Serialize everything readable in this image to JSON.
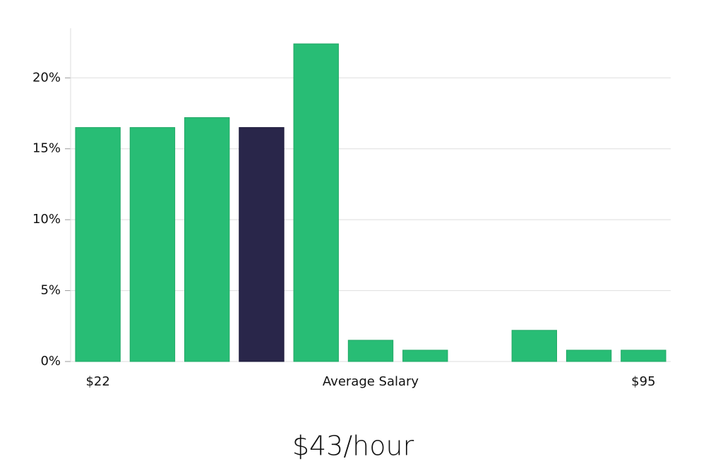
{
  "chart_data": {
    "type": "bar",
    "categories": [
      "$22",
      null,
      null,
      null,
      null,
      "Average Salary",
      null,
      null,
      null,
      null,
      "$95"
    ],
    "values": [
      16.5,
      16.5,
      17.2,
      16.5,
      22.4,
      1.5,
      0.8,
      0,
      2.2,
      0.8,
      0.8
    ],
    "colors": [
      "#28bd75",
      "#28bd75",
      "#28bd75",
      "#29264a",
      "#28bd75",
      "#28bd75",
      "#28bd75",
      "#28bd75",
      "#28bd75",
      "#28bd75",
      "#28bd75"
    ],
    "ylim": [
      0,
      23.5
    ],
    "yticks": [
      {
        "value": 0,
        "label": "0%"
      },
      {
        "value": 5,
        "label": "5%"
      },
      {
        "value": 10,
        "label": "10%"
      },
      {
        "value": 15,
        "label": "15%"
      },
      {
        "value": 20,
        "label": "20%"
      }
    ],
    "grid": true,
    "annotation": "$43/hour"
  }
}
